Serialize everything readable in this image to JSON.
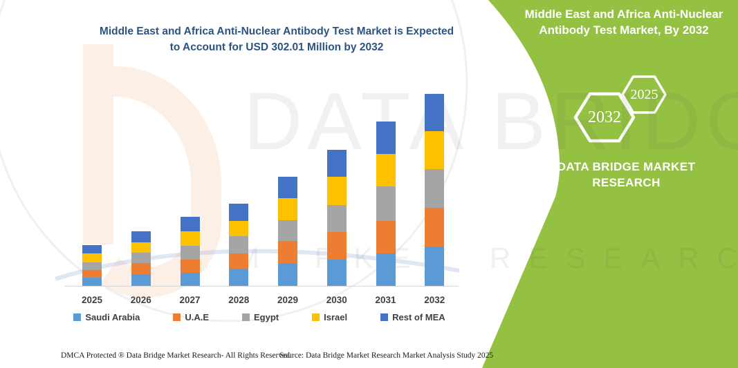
{
  "header": {
    "title_line1": "Middle East and Africa Anti-Nuclear Antibody Test Market is Expected",
    "title_line2": "to Account for USD 302.01 Million by 2032"
  },
  "chart_data": {
    "type": "bar",
    "stacked": true,
    "title": "Middle East and Africa Anti-Nuclear Antibody Test Market is Expected to Account for USD 302.01 Million by 2032",
    "unit": "USD Million",
    "categories": [
      "2025",
      "2026",
      "2027",
      "2028",
      "2029",
      "2030",
      "2031",
      "2032"
    ],
    "series": [
      {
        "name": "Saudi Arabia",
        "color": "#5B9BD5",
        "values": [
          13.3,
          18.1,
          21.0,
          27.1,
          34.4,
          41.6,
          50.7,
          61.5
        ]
      },
      {
        "name": "U.A.E",
        "color": "#ED7D31",
        "values": [
          11.9,
          18.1,
          20.6,
          24.2,
          36.1,
          42.7,
          51.8,
          61.5
        ]
      },
      {
        "name": "Egypt",
        "color": "#A5A5A5",
        "values": [
          11.6,
          16.3,
          21.7,
          26.4,
          32.6,
          43.1,
          53.2,
          60.4
        ]
      },
      {
        "name": "Israel",
        "color": "#FFC000",
        "values": [
          13.8,
          15.5,
          22.5,
          24.2,
          34.4,
          44.5,
          51.0,
          60.0
        ]
      },
      {
        "name": "Rest of MEA",
        "color": "#4472C4",
        "values": [
          13.8,
          18.1,
          22.5,
          27.1,
          33.6,
          42.3,
          51.0,
          58.6
        ]
      }
    ],
    "totals_estimated": [
      64.4,
      86.1,
      108.3,
      129.0,
      171.1,
      214.2,
      257.7,
      302.01
    ],
    "ylim": [
      0,
      320
    ],
    "grid": false,
    "legend_position": "bottom"
  },
  "side_panel": {
    "title_line1": "Middle East and Africa Anti-Nuclear",
    "title_line2": "Antibody Test Market, By 2032",
    "hexagon_back_label": "2032",
    "hexagon_front_label": "2025",
    "brand_name": "DATA BRIDGE MARKET RESEARCH",
    "bg_color": "#95C143"
  },
  "watermark": {
    "big_text": "DATA BRIDGE",
    "spaced_text": "MARKET RESEARCH"
  },
  "footer": {
    "dmca_text": "DMCA Protected ® Data Bridge Market Research-  All Rights Reserved.",
    "source_text": "Source: Data Bridge Market Research  Market Analysis Study 2025"
  }
}
